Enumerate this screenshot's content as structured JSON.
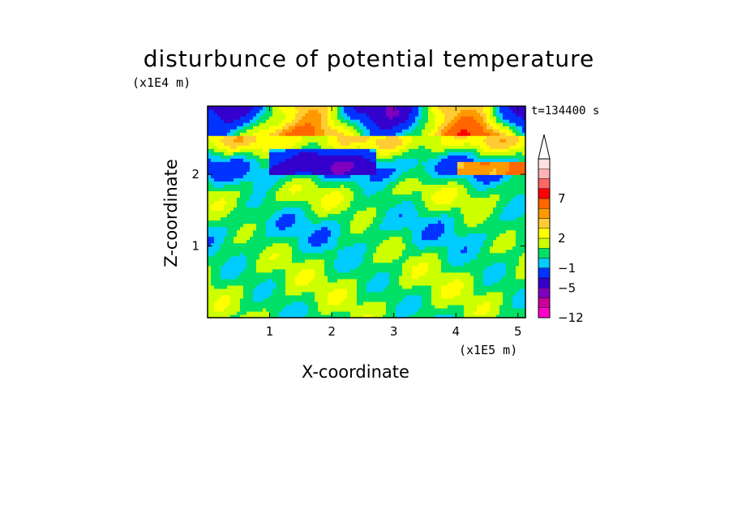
{
  "chart_data": {
    "type": "heatmap",
    "title": "disturbunce of potential temperature",
    "xlabel": "X-coordinate",
    "ylabel": "Z-coordinate",
    "x_unit": "(x1E5 m)",
    "y_unit": "(x1E4 m)",
    "time_label": "t=134400 s",
    "xlim": [
      0,
      5.12
    ],
    "ylim": [
      0,
      2.95
    ],
    "xticks": [
      "1",
      "2",
      "3",
      "4",
      "5"
    ],
    "xtick_values": [
      1,
      2,
      3,
      4,
      5
    ],
    "yticks": [
      "1",
      "2"
    ],
    "ytick_values": [
      1,
      2
    ],
    "colorbar": {
      "levels": [
        -12,
        -5,
        -1,
        2,
        7
      ],
      "labels": [
        "-12",
        "-5",
        "-1",
        "2",
        "7"
      ],
      "extend": "max",
      "colors": [
        "#ff00cc",
        "#cc0099",
        "#7f00bf",
        "#3300cc",
        "#0033ff",
        "#00ccff",
        "#00e066",
        "#ccff00",
        "#ffff00",
        "#ffcc33",
        "#ff9900",
        "#ff6600",
        "#ff0000",
        "#ff6666",
        "#ffb3b3",
        "#ffe0e0"
      ]
    },
    "field_description_bands": [
      {
        "z": [
          0.0,
          0.8
        ],
        "value": 1.0
      },
      {
        "z": [
          0.8,
          1.1
        ],
        "value": 0.2
      },
      {
        "z": [
          1.1,
          1.4
        ],
        "value": -0.5
      },
      {
        "z": [
          1.4,
          1.7
        ],
        "value": 0.5
      },
      {
        "z": [
          1.7,
          2.0
        ],
        "value": 1.5
      },
      {
        "z": [
          2.0,
          2.3
        ],
        "value": -3.0
      },
      {
        "z": [
          2.3,
          2.6
        ],
        "value": 4.0
      },
      {
        "z": [
          2.6,
          2.95
        ],
        "value": -1.0
      }
    ]
  }
}
